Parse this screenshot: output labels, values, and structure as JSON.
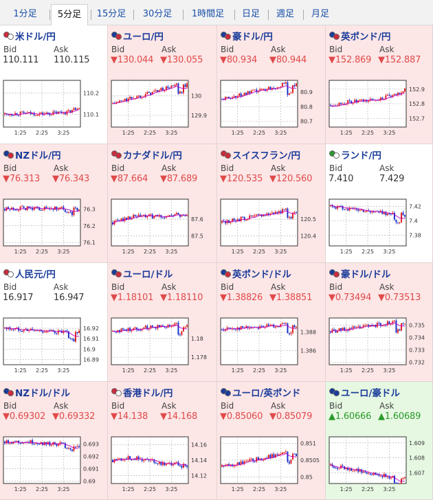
{
  "tabs": [
    {
      "label": "1分足",
      "active": false
    },
    {
      "label": "5分足",
      "active": true
    },
    {
      "label": "15分足",
      "active": false
    },
    {
      "label": "30分足",
      "active": false
    },
    {
      "label": "1時間足",
      "active": false
    },
    {
      "label": "日足",
      "active": false
    },
    {
      "label": "週足",
      "active": false
    },
    {
      "label": "月足",
      "active": false
    }
  ],
  "labels": {
    "bid": "Bid",
    "ask": "Ask"
  },
  "colors": {
    "up": "#e02020",
    "down": "#1a30c8",
    "ma": "#c000c0",
    "pink_bg": "#fde6e6",
    "green_bg": "#e6f8e2",
    "title": "#1a3c9a"
  },
  "pairs": [
    {
      "name": "米ドル/円",
      "flags": [
        "#cc2b3b",
        "#ffffff"
      ],
      "bid": "110.111",
      "ask": "110.115",
      "dir": "neutral",
      "bg": "white",
      "chart_data": {
        "type": "candlestick",
        "x_ticks": [
          "1:25",
          "2:25",
          "3:25"
        ],
        "y_ticks": [
          "110.2",
          "110.1"
        ],
        "ylim": [
          110.04,
          110.26
        ],
        "start": 110.1,
        "end": 110.11,
        "shape": "rise_end"
      }
    },
    {
      "name": "ユーロ/円",
      "flags": [
        "#1a3c9a",
        "#cc2b3b"
      ],
      "bid": "130.044",
      "ask": "130.055",
      "dir": "down",
      "bg": "pink",
      "chart_data": {
        "type": "candlestick",
        "x_ticks": [
          "1:25",
          "2:25",
          "3:25"
        ],
        "y_ticks": [
          "130",
          "129.9"
        ],
        "ylim": [
          129.84,
          130.08
        ],
        "start": 129.96,
        "end": 130.04,
        "shape": "rise_dip"
      }
    },
    {
      "name": "豪ドル/円",
      "flags": [
        "#1a3c9a",
        "#cc2b3b"
      ],
      "bid": "80.934",
      "ask": "80.944",
      "dir": "down",
      "bg": "pink",
      "chart_data": {
        "type": "candlestick",
        "x_ticks": [
          "1:25",
          "2:25",
          "3:25"
        ],
        "y_ticks": [
          "80.9",
          "80.8",
          "80.7"
        ],
        "ylim": [
          80.66,
          80.98
        ],
        "start": 80.85,
        "end": 80.93,
        "shape": "rise_dip"
      }
    },
    {
      "name": "英ポンド/円",
      "flags": [
        "#1a3c9a",
        "#cc2b3b"
      ],
      "bid": "152.869",
      "ask": "152.887",
      "dir": "down",
      "bg": "pink",
      "chart_data": {
        "type": "candlestick",
        "x_ticks": [
          "1:25",
          "2:25",
          "3:25"
        ],
        "y_ticks": [
          "152.9",
          "152.8",
          "152.7"
        ],
        "ylim": [
          152.64,
          152.96
        ],
        "start": 152.79,
        "end": 152.86,
        "shape": "rise_end"
      }
    },
    {
      "name": "NZドル/円",
      "flags": [
        "#1a3c9a",
        "#cc2b3b"
      ],
      "bid": "76.313",
      "ask": "76.343",
      "dir": "down",
      "bg": "pink",
      "chart_data": {
        "type": "candlestick",
        "x_ticks": [
          "1:25",
          "2:25",
          "3:25"
        ],
        "y_ticks": [
          "76.3",
          "76.2",
          "76.1"
        ],
        "ylim": [
          76.08,
          76.36
        ],
        "start": 76.3,
        "end": 76.31,
        "shape": "flat_dip"
      }
    },
    {
      "name": "カナダドル/円",
      "flags": [
        "#cc2b3b",
        "#cc2b3b"
      ],
      "bid": "87.664",
      "ask": "87.689",
      "dir": "down",
      "bg": "pink",
      "chart_data": {
        "type": "candlestick",
        "x_ticks": [
          "1:25",
          "2:25",
          "3:25"
        ],
        "y_ticks": [
          "87.6",
          "87.5"
        ],
        "ylim": [
          87.44,
          87.72
        ],
        "start": 87.58,
        "end": 87.65,
        "shape": "wave"
      }
    },
    {
      "name": "スイスフラン/円",
      "flags": [
        "#cc2b3b",
        "#cc2b3b"
      ],
      "bid": "120.535",
      "ask": "120.560",
      "dir": "down",
      "bg": "pink",
      "chart_data": {
        "type": "candlestick",
        "x_ticks": [
          "1:25",
          "2:25",
          "3:25"
        ],
        "y_ticks": [
          "120.5",
          "120.4"
        ],
        "ylim": [
          120.34,
          120.62
        ],
        "start": 120.48,
        "end": 120.53,
        "shape": "rise_dip"
      }
    },
    {
      "name": "ランド/円",
      "flags": [
        "#2a9a2a",
        "#ffffff"
      ],
      "bid": "7.410",
      "ask": "7.429",
      "dir": "neutral",
      "bg": "white",
      "chart_data": {
        "type": "candlestick",
        "x_ticks": [
          "1:25",
          "2:25",
          "3:25"
        ],
        "y_ticks": [
          "7.42",
          "7.4",
          "7.38"
        ],
        "ylim": [
          7.365,
          7.43
        ],
        "start": 7.42,
        "end": 7.41,
        "shape": "fall_dip"
      }
    },
    {
      "name": "人民元/円",
      "flags": [
        "#cc2b3b",
        "#ffffff"
      ],
      "bid": "16.917",
      "ask": "16.947",
      "dir": "neutral",
      "bg": "white",
      "chart_data": {
        "type": "candlestick",
        "x_ticks": [
          "1:25",
          "2:25",
          "3:25"
        ],
        "y_ticks": [
          "16.92",
          "16.91",
          "16.9",
          "16.89"
        ],
        "ylim": [
          16.885,
          16.93
        ],
        "start": 16.92,
        "end": 16.917,
        "shape": "fall_dip"
      }
    },
    {
      "name": "ユーロ/ドル",
      "flags": [
        "#1a3c9a",
        "#cc2b3b"
      ],
      "bid": "1.18101",
      "ask": "1.18110",
      "dir": "down",
      "bg": "pink",
      "chart_data": {
        "type": "candlestick",
        "x_ticks": [
          "1:25",
          "2:25",
          "3:25"
        ],
        "y_ticks": [
          "1.18",
          "1.178"
        ],
        "ylim": [
          1.1772,
          1.1822
        ],
        "start": 1.1808,
        "end": 1.181,
        "shape": "rise_dip"
      }
    },
    {
      "name": "英ポンド/ドル",
      "flags": [
        "#1a3c9a",
        "#cc2b3b"
      ],
      "bid": "1.38826",
      "ask": "1.38851",
      "dir": "down",
      "bg": "pink",
      "chart_data": {
        "type": "candlestick",
        "x_ticks": [
          "1:25",
          "2:25",
          "3:25"
        ],
        "y_ticks": [
          "1.388",
          "1.386"
        ],
        "ylim": [
          1.3845,
          1.3895
        ],
        "start": 1.3883,
        "end": 1.3882,
        "shape": "rise_dip"
      }
    },
    {
      "name": "豪ドル/ドル",
      "flags": [
        "#1a3c9a",
        "#cc2b3b"
      ],
      "bid": "0.73494",
      "ask": "0.73513",
      "dir": "down",
      "bg": "pink",
      "chart_data": {
        "type": "candlestick",
        "x_ticks": [
          "1:25",
          "2:25",
          "3:25"
        ],
        "y_ticks": [
          "0.735",
          "0.734",
          "0.733",
          "0.732"
        ],
        "ylim": [
          0.7318,
          0.7356
        ],
        "start": 0.7345,
        "end": 0.7349,
        "shape": "rise_dip"
      }
    },
    {
      "name": "NZドル/ドル",
      "flags": [
        "#1a3c9a",
        "#cc2b3b"
      ],
      "bid": "0.69302",
      "ask": "0.69332",
      "dir": "down",
      "bg": "pink",
      "chart_data": {
        "type": "candlestick",
        "x_ticks": [
          "1:25",
          "2:25",
          "3:25"
        ],
        "y_ticks": [
          "0.693",
          "0.692",
          "0.691",
          "0.69"
        ],
        "ylim": [
          0.6898,
          0.6936
        ],
        "start": 0.6932,
        "end": 0.693,
        "shape": "flat_dip"
      }
    },
    {
      "name": "香港ドル/円",
      "flags": [
        "#cc2b3b",
        "#ffffff"
      ],
      "bid": "14.138",
      "ask": "14.168",
      "dir": "down",
      "bg": "pink",
      "chart_data": {
        "type": "candlestick",
        "x_ticks": [
          "1:25",
          "2:25",
          "3:25"
        ],
        "y_ticks": [
          "14.16",
          "14.14",
          "14.12"
        ],
        "ylim": [
          14.11,
          14.17
        ],
        "start": 14.14,
        "end": 14.138,
        "shape": "wave"
      }
    },
    {
      "name": "ユーロ/英ポンド",
      "flags": [
        "#1a3c9a",
        "#1a3c9a"
      ],
      "bid": "0.85060",
      "ask": "0.85079",
      "dir": "down",
      "bg": "pink",
      "chart_data": {
        "type": "candlestick",
        "x_ticks": [
          "1:25",
          "2:25",
          "3:25"
        ],
        "y_ticks": [
          "0.851",
          "0.8505",
          "0.85"
        ],
        "ylim": [
          0.8498,
          0.8512
        ],
        "start": 0.8503,
        "end": 0.8506,
        "shape": "rise_dip"
      }
    },
    {
      "name": "ユーロ/豪ドル",
      "flags": [
        "#1a3c9a",
        "#1a3c9a"
      ],
      "bid": "1.60666",
      "ask": "1.60689",
      "dir": "up",
      "bg": "green",
      "chart_data": {
        "type": "candlestick",
        "x_ticks": [
          "1:25",
          "2:25",
          "3:25"
        ],
        "y_ticks": [
          "1.609",
          "1.608",
          "1.607"
        ],
        "ylim": [
          1.6063,
          1.6094
        ],
        "start": 1.6075,
        "end": 1.6067,
        "shape": "fall_dip"
      }
    }
  ]
}
